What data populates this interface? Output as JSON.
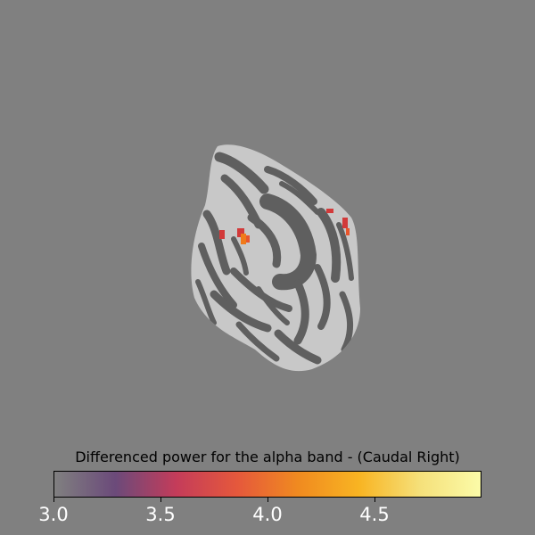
{
  "view": {
    "background_color": "#808080",
    "surface_light": "#c8c8c8",
    "surface_dark": "#5f5f5f",
    "activation_colors": [
      "#d23a3a",
      "#f07a1a",
      "#e8552c"
    ]
  },
  "colorbar": {
    "title": "Differenced power for the alpha band - (Caudal Right)",
    "min": 3.0,
    "max": 5.0,
    "ticks": [
      "3.0",
      "3.5",
      "4.0",
      "4.5"
    ],
    "tick_values": [
      3.0,
      3.5,
      4.0,
      4.5
    ],
    "colormap": "inferno-style",
    "color_stops": [
      "#808080",
      "#6b4a7a",
      "#c43c5a",
      "#e5583c",
      "#f08a20",
      "#f8b422",
      "#f5e07a",
      "#fbfba8"
    ]
  }
}
